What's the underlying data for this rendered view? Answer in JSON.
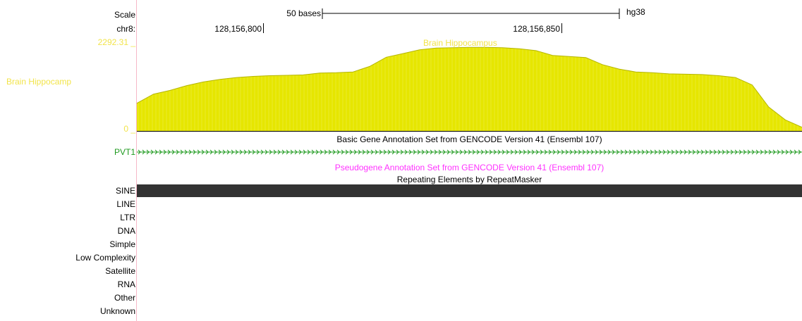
{
  "ruler": {
    "scale_label": "Scale",
    "chrom_label": "chr8:",
    "bases_label": "50 bases",
    "assembly": "hg38",
    "positions": [
      "128,156,800",
      "128,156,850"
    ]
  },
  "signal_track": {
    "name_left": "Brain Hippocamp",
    "name_center": "Brain Hippocampus",
    "max_label": "2292.31 _",
    "min_label": "0 _",
    "color": "#e6e600",
    "color_dark": "#b5b500",
    "label_color": "#f2e44a"
  },
  "gene_track": {
    "title": "Basic Gene Annotation Set from GENCODE Version 41 (Ensembl 107)",
    "gene_label": "PVT1",
    "gene_color": "#1f9a1f"
  },
  "pseudo_track": {
    "title": "Pseudogene Annotation Set from GENCODE Version 41 (Ensembl 107)",
    "color": "#ff33ff"
  },
  "repeat_track": {
    "title": "Repeating Elements by RepeatMasker",
    "bar_color": "#333333",
    "classes": [
      "SINE",
      "LINE",
      "LTR",
      "DNA",
      "Simple",
      "Low Complexity",
      "Satellite",
      "RNA",
      "Other",
      "Unknown"
    ]
  },
  "chart_data": {
    "type": "area",
    "series": [
      {
        "name": "Brain Hippocampus",
        "values": [
          750,
          1000,
          1100,
          1230,
          1330,
          1400,
          1450,
          1480,
          1500,
          1510,
          1520,
          1570,
          1580,
          1600,
          1750,
          2000,
          2100,
          2200,
          2250,
          2260,
          2270,
          2270,
          2260,
          2230,
          2180,
          2050,
          2020,
          1990,
          1800,
          1680,
          1600,
          1580,
          1550,
          1540,
          1530,
          1500,
          1450,
          1250,
          650,
          300,
          100
        ]
      }
    ],
    "ylim": [
      0,
      2292.31
    ]
  }
}
